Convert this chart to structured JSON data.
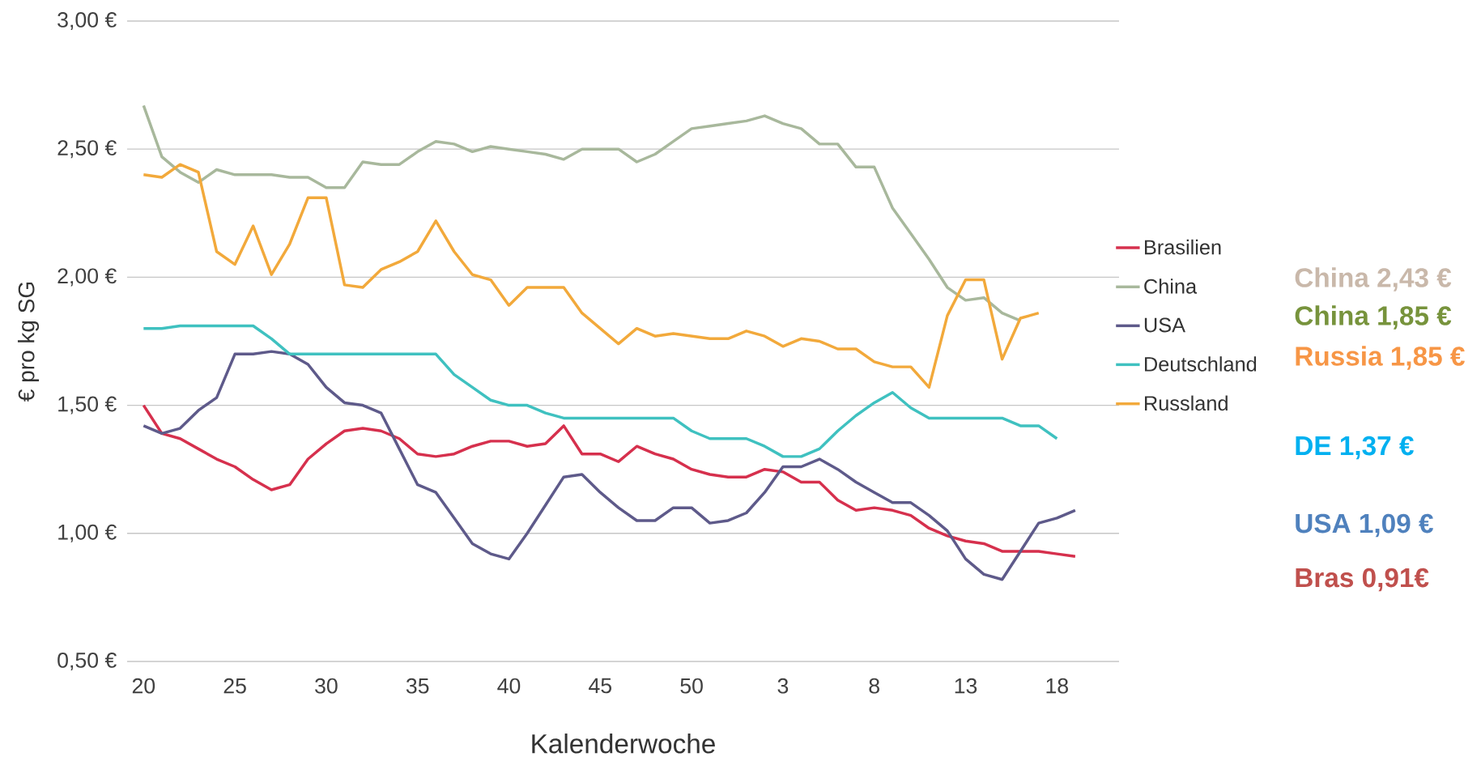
{
  "chart_data": {
    "type": "line",
    "xlabel": "Kalenderwoche",
    "ylabel": "€ pro kg SG",
    "categories": [
      "20",
      null,
      null,
      null,
      null,
      "25",
      null,
      null,
      null,
      null,
      "30",
      null,
      null,
      null,
      null,
      "35",
      null,
      null,
      null,
      null,
      "40",
      null,
      null,
      null,
      null,
      "45",
      null,
      null,
      null,
      null,
      "50",
      null,
      null,
      null,
      null,
      "3",
      null,
      null,
      null,
      null,
      "8",
      null,
      null,
      null,
      null,
      "13",
      null,
      null,
      null,
      null,
      "18",
      null
    ],
    "series": [
      {
        "name": "Brasilien",
        "color": "#d6304d",
        "values": [
          1.5,
          1.39,
          1.37,
          1.33,
          1.29,
          1.26,
          1.21,
          1.17,
          1.19,
          1.29,
          1.35,
          1.4,
          1.41,
          1.4,
          1.37,
          1.31,
          1.3,
          1.31,
          1.34,
          1.36,
          1.36,
          1.34,
          1.35,
          1.42,
          1.31,
          1.31,
          1.28,
          1.34,
          1.31,
          1.29,
          1.25,
          1.23,
          1.22,
          1.22,
          1.25,
          1.24,
          1.2,
          1.2,
          1.13,
          1.09,
          1.1,
          1.09,
          1.07,
          1.02,
          0.99,
          0.97,
          0.96,
          0.93,
          0.93,
          0.93,
          0.92,
          0.91
        ]
      },
      {
        "name": "China",
        "color": "#a8b89c",
        "values": [
          2.67,
          2.47,
          2.41,
          2.37,
          2.42,
          2.4,
          2.4,
          2.4,
          2.39,
          2.39,
          2.35,
          2.35,
          2.45,
          2.44,
          2.44,
          2.49,
          2.53,
          2.52,
          2.49,
          2.51,
          2.5,
          2.49,
          2.48,
          2.46,
          2.5,
          2.5,
          2.5,
          2.45,
          2.48,
          2.53,
          2.58,
          2.59,
          2.6,
          2.61,
          2.63,
          2.6,
          2.58,
          2.52,
          2.52,
          2.43,
          2.43,
          2.27,
          2.17,
          2.07,
          1.96,
          1.91,
          1.92,
          1.86,
          1.83,
          null,
          null,
          null
        ]
      },
      {
        "name": "USA",
        "color": "#5e5a8a",
        "values": [
          1.42,
          1.39,
          1.41,
          1.48,
          1.53,
          1.7,
          1.7,
          1.71,
          1.7,
          1.66,
          1.57,
          1.51,
          1.5,
          1.47,
          1.33,
          1.19,
          1.16,
          1.06,
          0.96,
          0.92,
          0.9,
          1.0,
          1.11,
          1.22,
          1.23,
          1.16,
          1.1,
          1.05,
          1.05,
          1.1,
          1.1,
          1.04,
          1.05,
          1.08,
          1.16,
          1.26,
          1.26,
          1.29,
          1.25,
          1.2,
          1.16,
          1.12,
          1.12,
          1.07,
          1.01,
          0.9,
          0.84,
          0.82,
          0.93,
          1.04,
          1.06,
          1.09
        ]
      },
      {
        "name": "Deutschland",
        "color": "#3fc1c0",
        "values": [
          1.8,
          1.8,
          1.81,
          1.81,
          1.81,
          1.81,
          1.81,
          1.76,
          1.7,
          1.7,
          1.7,
          1.7,
          1.7,
          1.7,
          1.7,
          1.7,
          1.7,
          1.62,
          1.57,
          1.52,
          1.5,
          1.5,
          1.47,
          1.45,
          1.45,
          1.45,
          1.45,
          1.45,
          1.45,
          1.45,
          1.4,
          1.37,
          1.37,
          1.37,
          1.34,
          1.3,
          1.3,
          1.33,
          1.4,
          1.46,
          1.51,
          1.55,
          1.49,
          1.45,
          1.45,
          1.45,
          1.45,
          1.45,
          1.42,
          1.42,
          1.37,
          null
        ]
      },
      {
        "name": "Russland",
        "color": "#f2a93b",
        "values": [
          2.4,
          2.39,
          2.44,
          2.41,
          2.1,
          2.05,
          2.2,
          2.01,
          2.13,
          2.31,
          2.31,
          1.97,
          1.96,
          2.03,
          2.06,
          2.1,
          2.22,
          2.1,
          2.01,
          1.99,
          1.89,
          1.96,
          1.96,
          1.96,
          1.86,
          1.8,
          1.74,
          1.8,
          1.77,
          1.78,
          1.77,
          1.76,
          1.76,
          1.79,
          1.77,
          1.73,
          1.76,
          1.75,
          1.72,
          1.72,
          1.67,
          1.65,
          1.65,
          1.57,
          1.85,
          1.99,
          1.99,
          1.68,
          1.84,
          1.86,
          null,
          null
        ]
      }
    ],
    "ylim": [
      0.5,
      3.0
    ],
    "yticks": [
      {
        "value": 0.5,
        "label": "0,50 €"
      },
      {
        "value": 1.0,
        "label": "1,00 €"
      },
      {
        "value": 1.5,
        "label": "1,50 €"
      },
      {
        "value": 2.0,
        "label": "2,00 €"
      },
      {
        "value": 2.5,
        "label": "2,50 €"
      },
      {
        "value": 3.0,
        "label": "3,00 €"
      }
    ],
    "grid": "y",
    "legend": "right",
    "line_style": "solid",
    "annotations": [
      "China 2,43 €",
      "China 1,85 €",
      "Russia 1,85 €",
      "DE 1,37 €",
      "USA 1,09 €",
      "Bras 0,91€"
    ]
  }
}
